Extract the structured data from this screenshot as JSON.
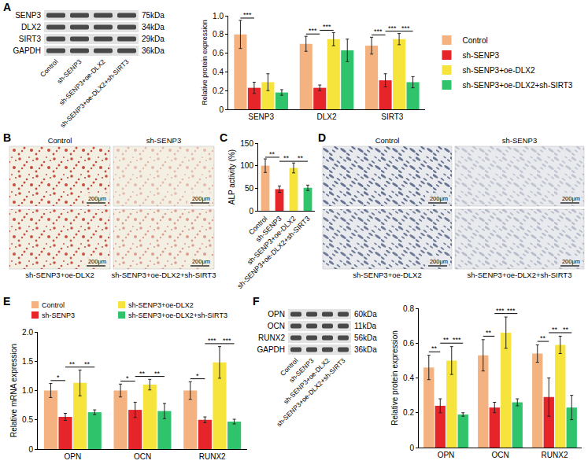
{
  "panel_letters": [
    "A",
    "B",
    "C",
    "D",
    "E",
    "F"
  ],
  "blots": [
    {
      "rows": [
        {
          "protein": "SENP3",
          "size": "75kDa"
        },
        {
          "protein": "DLX2",
          "size": "34kDa"
        },
        {
          "protein": "SIRT3",
          "size": "29kDa"
        },
        {
          "protein": "GAPDH",
          "size": "36kDa"
        }
      ],
      "lanes": [
        "Control",
        "sh-SENP3",
        "sh-SENP3+oe-DLX2",
        "sh-SENP3+oe-DLX2+sh-SIRT3"
      ]
    },
    {
      "rows": [
        {
          "protein": "OPN",
          "size": "60kDa"
        },
        {
          "protein": "OCN",
          "size": "11kDa"
        },
        {
          "protein": "RUNX2",
          "size": "56kDa"
        },
        {
          "protein": "GAPDH",
          "size": "36kDa"
        }
      ],
      "lanes": [
        "Control",
        "sh-SENP3",
        "sh-SENP3+oe-DLX2",
        "sh-SENP3+oe-DLX2+sh-SIRT3"
      ]
    }
  ],
  "micrographs": [
    [
      {
        "label": "Control",
        "scale_bar": "200μm"
      },
      {
        "label": "sh-SENP3",
        "scale_bar": "200μm"
      },
      {
        "label": "sh-SENP3+oe-DLX2",
        "scale_bar": "200μm"
      },
      {
        "label": "sh-SENP3+oe-DLX2+sh-SIRT3",
        "scale_bar": "200μm"
      }
    ],
    [
      {
        "label": "Control",
        "scale_bar": "200μm"
      },
      {
        "label": "sh-SENP3",
        "scale_bar": "200μm"
      },
      {
        "label": "sh-SENP3+oe-DLX2",
        "scale_bar": "200μm"
      },
      {
        "label": "sh-SENP3+oe-DLX2+sh-SIRT3",
        "scale_bar": "200μm"
      }
    ]
  ],
  "chart_data": [
    {
      "type": "bar",
      "ylabel": "Relative protein expression",
      "categories": [
        "SENP3",
        "DLX2",
        "SIRT3"
      ],
      "series": [
        {
          "name": "Control",
          "color": "#f3b27f",
          "values": [
            0.8,
            0.7,
            0.68
          ],
          "errors": [
            0.15,
            0.08,
            0.09
          ]
        },
        {
          "name": "sh-SENP3",
          "color": "#e5252a",
          "values": [
            0.23,
            0.23,
            0.31
          ],
          "errors": [
            0.06,
            0.03,
            0.07
          ]
        },
        {
          "name": "sh-SENP3+oe-DLX2",
          "color": "#f6e43c",
          "values": [
            0.29,
            0.75,
            0.75
          ],
          "errors": [
            0.09,
            0.07,
            0.06
          ]
        },
        {
          "name": "sh-SENP3+oe-DLX2+sh-SIRT3",
          "color": "#2fc46c",
          "values": [
            0.18,
            0.63,
            0.29
          ],
          "errors": [
            0.03,
            0.12,
            0.06
          ]
        }
      ],
      "ylim": [
        0,
        1
      ],
      "yticks": [
        0,
        0.2,
        0.4,
        0.6,
        0.8,
        {
          "value": 1,
          "label": "1.0"
        }
      ],
      "grid": false,
      "legend": "right",
      "significance": [
        {
          "category": "SENP3",
          "pair": [
            "Control",
            "sh-SENP3"
          ],
          "label": "***"
        },
        {
          "category": "DLX2",
          "pair": [
            "Control",
            "sh-SENP3"
          ],
          "label": "***"
        },
        {
          "category": "DLX2",
          "pair": [
            "sh-SENP3",
            "sh-SENP3+oe-DLX2"
          ],
          "label": "***"
        },
        {
          "category": "SIRT3",
          "pair": [
            "Control",
            "sh-SENP3"
          ],
          "label": "***"
        },
        {
          "category": "SIRT3",
          "pair": [
            "sh-SENP3",
            "sh-SENP3+oe-DLX2"
          ],
          "label": "***"
        },
        {
          "category": "SIRT3",
          "pair": [
            "sh-SENP3+oe-DLX2",
            "sh-SENP3+oe-DLX2+sh-SIRT3"
          ],
          "label": "***"
        }
      ]
    },
    {
      "type": "bar",
      "ylabel": "ALP activity (%)",
      "categories": [
        "Control",
        "sh-SENP3",
        "sh-SENP3+oe-DLX2",
        "sh-SENP3+oe-DLX2+sh-SIRT3"
      ],
      "values": [
        100,
        48,
        95,
        51
      ],
      "errors": [
        15,
        7,
        11,
        6
      ],
      "colors": [
        "#f3b27f",
        "#e5252a",
        "#f6e43c",
        "#2fc46c"
      ],
      "ylim": [
        0,
        150
      ],
      "yticks": [
        0,
        50,
        100,
        150
      ],
      "grid": false,
      "significance": [
        {
          "pair": [
            "Control",
            "sh-SENP3"
          ],
          "label": "**"
        },
        {
          "pair": [
            "sh-SENP3",
            "sh-SENP3+oe-DLX2"
          ],
          "label": "**"
        },
        {
          "pair": [
            "sh-SENP3+oe-DLX2",
            "sh-SENP3+oe-DLX2+sh-SIRT3"
          ],
          "label": "**"
        }
      ]
    },
    {
      "type": "bar",
      "ylabel": "Relative mRNA expression",
      "categories": [
        "OPN",
        "OCN",
        "RUNX2"
      ],
      "series": [
        {
          "name": "Control",
          "color": "#f3b27f",
          "values": [
            1.0,
            1.0,
            1.0
          ],
          "errors": [
            0.12,
            0.11,
            0.15
          ]
        },
        {
          "name": "sh-SENP3",
          "color": "#e5252a",
          "values": [
            0.55,
            0.67,
            0.5
          ],
          "errors": [
            0.06,
            0.13,
            0.05
          ]
        },
        {
          "name": "sh-SENP3+oe-DLX2",
          "color": "#f6e43c",
          "values": [
            1.13,
            1.1,
            1.48
          ],
          "errors": [
            0.22,
            0.09,
            0.27
          ]
        },
        {
          "name": "sh-SENP3+oe-DLX2+sh-SIRT3",
          "color": "#2fc46c",
          "values": [
            0.63,
            0.65,
            0.47
          ],
          "errors": [
            0.04,
            0.13,
            0.04
          ]
        }
      ],
      "ylim": [
        0,
        2
      ],
      "yticks": [
        0,
        0.5,
        {
          "value": 1,
          "label": "1.0"
        },
        1.5,
        {
          "value": 2,
          "label": "2.0"
        }
      ],
      "grid": false,
      "legend": "top",
      "significance": [
        {
          "category": "OPN",
          "pair": [
            "Control",
            "sh-SENP3"
          ],
          "label": "*"
        },
        {
          "category": "OPN",
          "pair": [
            "sh-SENP3",
            "sh-SENP3+oe-DLX2"
          ],
          "label": "**"
        },
        {
          "category": "OPN",
          "pair": [
            "sh-SENP3+oe-DLX2",
            "sh-SENP3+oe-DLX2+sh-SIRT3"
          ],
          "label": "**"
        },
        {
          "category": "OCN",
          "pair": [
            "Control",
            "sh-SENP3"
          ],
          "label": "*"
        },
        {
          "category": "OCN",
          "pair": [
            "sh-SENP3",
            "sh-SENP3+oe-DLX2"
          ],
          "label": "**"
        },
        {
          "category": "OCN",
          "pair": [
            "sh-SENP3+oe-DLX2",
            "sh-SENP3+oe-DLX2+sh-SIRT3"
          ],
          "label": "**"
        },
        {
          "category": "RUNX2",
          "pair": [
            "Control",
            "sh-SENP3"
          ],
          "label": "*"
        },
        {
          "category": "RUNX2",
          "pair": [
            "sh-SENP3",
            "sh-SENP3+oe-DLX2"
          ],
          "label": "***"
        },
        {
          "category": "RUNX2",
          "pair": [
            "sh-SENP3+oe-DLX2",
            "sh-SENP3+oe-DLX2+sh-SIRT3"
          ],
          "label": "***"
        }
      ]
    },
    {
      "type": "bar",
      "ylabel": "Relative protein expression",
      "categories": [
        "OPN",
        "OCN",
        "RUNX2"
      ],
      "series": [
        {
          "name": "Control",
          "color": "#f3b27f",
          "values": [
            0.46,
            0.53,
            0.54
          ],
          "errors": [
            0.07,
            0.09,
            0.05
          ]
        },
        {
          "name": "sh-SENP3",
          "color": "#e5252a",
          "values": [
            0.24,
            0.23,
            0.29
          ],
          "errors": [
            0.04,
            0.03,
            0.11
          ]
        },
        {
          "name": "sh-SENP3+oe-DLX2",
          "color": "#f6e43c",
          "values": [
            0.5,
            0.66,
            0.59
          ],
          "errors": [
            0.08,
            0.09,
            0.05
          ]
        },
        {
          "name": "sh-SENP3+oe-DLX2+sh-SIRT3",
          "color": "#2fc46c",
          "values": [
            0.19,
            0.26,
            0.23
          ],
          "errors": [
            0.01,
            0.02,
            0.07
          ]
        }
      ],
      "ylim": [
        0,
        0.8
      ],
      "yticks": [
        0,
        0.2,
        0.4,
        0.6,
        0.8
      ],
      "grid": false,
      "significance": [
        {
          "category": "OPN",
          "pair": [
            "Control",
            "sh-SENP3"
          ],
          "label": "**"
        },
        {
          "category": "OPN",
          "pair": [
            "sh-SENP3",
            "sh-SENP3+oe-DLX2"
          ],
          "label": "**"
        },
        {
          "category": "OPN",
          "pair": [
            "sh-SENP3+oe-DLX2",
            "sh-SENP3+oe-DLX2+sh-SIRT3"
          ],
          "label": "***"
        },
        {
          "category": "OCN",
          "pair": [
            "Control",
            "sh-SENP3"
          ],
          "label": "**"
        },
        {
          "category": "OCN",
          "pair": [
            "sh-SENP3",
            "sh-SENP3+oe-DLX2"
          ],
          "label": "***"
        },
        {
          "category": "OCN",
          "pair": [
            "sh-SENP3+oe-DLX2",
            "sh-SENP3+oe-DLX2+sh-SIRT3"
          ],
          "label": "***"
        },
        {
          "category": "RUNX2",
          "pair": [
            "Control",
            "sh-SENP3"
          ],
          "label": "**"
        },
        {
          "category": "RUNX2",
          "pair": [
            "sh-SENP3",
            "sh-SENP3+oe-DLX2"
          ],
          "label": "**"
        },
        {
          "category": "RUNX2",
          "pair": [
            "sh-SENP3+oe-DLX2",
            "sh-SENP3+oe-DLX2+sh-SIRT3"
          ],
          "label": "**"
        }
      ]
    }
  ]
}
